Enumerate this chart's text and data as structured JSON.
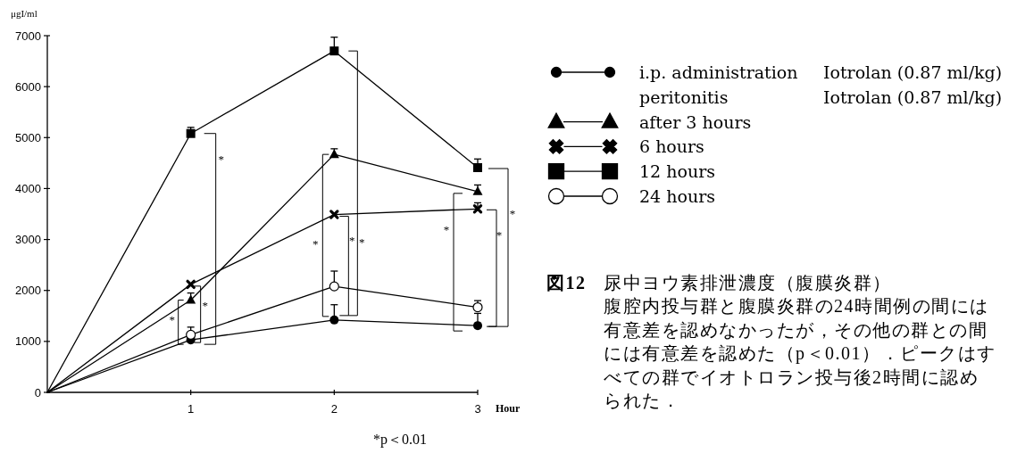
{
  "chart_data": {
    "type": "line",
    "title": "図12　尿中ヨウ素排泄濃度（腹膜炎群）",
    "subtitle": "腹腔内投与群と腹膜炎群の24時間例の間には有意差を認めなかったが，その他の群との間には有意差を認めた（p＜0.01）．ピークはすべての群でイオトロラン投与後2時間に認められた．",
    "xlabel": "Hour",
    "ylabel": "μgI/ml",
    "x": [
      0,
      1,
      2,
      3
    ],
    "xlim": [
      0,
      3
    ],
    "xticks": [
      1,
      2,
      3
    ],
    "ylim": [
      0,
      7000
    ],
    "yticks": [
      0,
      1000,
      2000,
      3000,
      4000,
      5000,
      6000,
      7000
    ],
    "legend": "right",
    "series": [
      {
        "name": "i.p. administration",
        "color": "#000000",
        "marker": "circle",
        "values": [
          0,
          1030,
          1420,
          1310
        ],
        "errors": [
          null,
          null,
          [
            1420,
            1720
          ],
          [
            1310,
            1550
          ]
        ]
      },
      {
        "name": "after 3 hours",
        "color": "#000000",
        "marker": "triangle",
        "values": [
          0,
          1810,
          4670,
          3940
        ],
        "errors": [
          null,
          [
            1810,
            1950
          ],
          [
            4670,
            4780
          ],
          [
            3940,
            4070
          ]
        ]
      },
      {
        "name": "6 hours",
        "color": "#000000",
        "marker": "cross",
        "values": [
          0,
          2120,
          3490,
          3600
        ],
        "errors": [
          null,
          null,
          null,
          [
            3600,
            3720
          ]
        ]
      },
      {
        "name": "12 hours",
        "color": "#000000",
        "marker": "square",
        "values": [
          0,
          5080,
          6700,
          4410
        ],
        "errors": [
          null,
          [
            5080,
            5200
          ],
          [
            6700,
            6970
          ],
          [
            4410,
            4580
          ]
        ]
      },
      {
        "name": "24 hours",
        "color": "#000000",
        "marker": "circle-open",
        "values": [
          0,
          1130,
          2080,
          1670
        ],
        "errors": [
          null,
          [
            1130,
            1280
          ],
          [
            2080,
            2380
          ],
          [
            1670,
            1800
          ]
        ]
      }
    ],
    "annotations": [
      "Iotrolan (0.87 ml/kg)",
      "peritonitis",
      "Iotrolan (0.87 ml/kg)",
      "*",
      "*",
      "*",
      "*",
      "*",
      "*",
      "*",
      "*",
      "*",
      "*p＜0.01"
    ]
  }
}
